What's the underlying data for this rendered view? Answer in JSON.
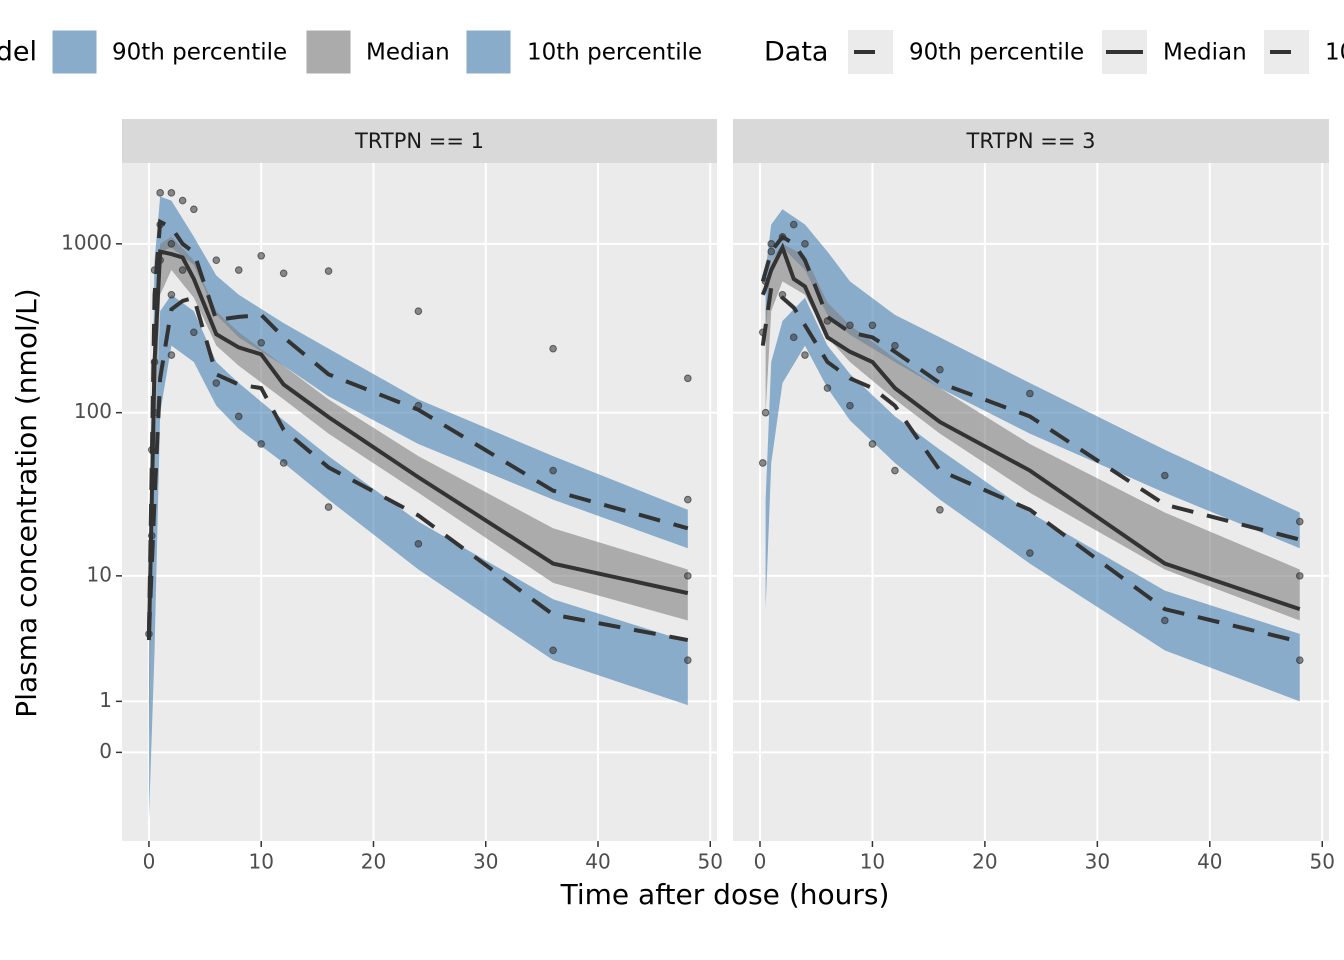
{
  "chart_data": [
    {
      "type": "line",
      "title": "TRTPN == 1",
      "x_label": "Time after dose (hours)",
      "y_label": "Plasma concentration (nmol/L)",
      "legend_titles": [
        "Model",
        "Data"
      ],
      "xlim": [
        -2.4,
        50.6
      ],
      "ylim": [
        -0.7,
        3000
      ],
      "yscale": "log10(x+1)",
      "xticks": [
        0,
        10,
        20,
        30,
        40,
        50
      ],
      "yticks": [
        0,
        1,
        10,
        100,
        1000
      ],
      "grid": true,
      "bands": [
        {
          "name": "90th percentile",
          "color": "#4682b4",
          "opacity": 0.6,
          "x": [
            0,
            0.5,
            1,
            2,
            4,
            6,
            8,
            12,
            16,
            24,
            36,
            48
          ],
          "lower": [
            0,
            200,
            900,
            950,
            750,
            380,
            280,
            190,
            125,
            65,
            30,
            15
          ],
          "upper": [
            3,
            800,
            1900,
            1800,
            1100,
            650,
            500,
            340,
            240,
            120,
            55,
            26
          ]
        },
        {
          "name": "Median",
          "color": "#808080",
          "opacity": 0.6,
          "x": [
            0,
            0.5,
            1,
            2,
            4,
            6,
            8,
            12,
            16,
            24,
            36,
            48
          ],
          "lower": [
            0,
            50,
            500,
            700,
            480,
            250,
            190,
            120,
            75,
            33,
            9,
            5
          ],
          "upper": [
            1,
            300,
            1000,
            1100,
            800,
            400,
            300,
            190,
            120,
            55,
            20,
            11
          ]
        },
        {
          "name": "10th percentile",
          "color": "#4682b4",
          "opacity": 0.6,
          "x": [
            0,
            0.5,
            1,
            2,
            4,
            6,
            8,
            12,
            16,
            24,
            36,
            48
          ],
          "lower": [
            -0.6,
            3,
            100,
            250,
            200,
            110,
            80,
            50,
            30,
            11,
            2.5,
            0.9
          ],
          "upper": [
            0,
            60,
            400,
            500,
            400,
            200,
            150,
            90,
            55,
            22,
            7,
            3.5
          ]
        }
      ],
      "series": [
        {
          "name": "90th percentile",
          "color": "#333333",
          "dashed": true,
          "x": [
            0,
            0.5,
            1,
            2,
            3,
            4,
            6,
            8,
            10,
            12,
            16,
            24,
            36,
            48
          ],
          "values": [
            4,
            500,
            1350,
            1250,
            1000,
            890,
            355,
            370,
            380,
            280,
            169,
            104,
            34,
            20
          ]
        },
        {
          "name": "Median",
          "color": "#333333",
          "dashed": false,
          "x": [
            0,
            0.5,
            1,
            2,
            3,
            4,
            6,
            8,
            10,
            12,
            16,
            24,
            36,
            48
          ],
          "values": [
            3.6,
            200,
            900,
            870,
            830,
            620,
            292,
            244,
            222,
            147,
            94,
            41,
            12,
            7.7
          ]
        },
        {
          "name": "10th percentile",
          "color": "#333333",
          "dashed": true,
          "x": [
            0,
            0.5,
            1,
            2,
            3,
            4,
            6,
            8,
            10,
            12,
            16,
            24,
            36,
            48
          ],
          "values": [
            4,
            30,
            160,
            410,
            460,
            480,
            169,
            147,
            140,
            79,
            47,
            24,
            5.5,
            3.6
          ]
        }
      ],
      "points": {
        "color": "#333333",
        "x": [
          0,
          0.25,
          0.25,
          0.5,
          0.5,
          0.5,
          1,
          1,
          1,
          2,
          2,
          2,
          2,
          3,
          3,
          4,
          4,
          6,
          6,
          8,
          8,
          10,
          10,
          10,
          12,
          12,
          16,
          16,
          24,
          24,
          24,
          36,
          36,
          36,
          48,
          48,
          48,
          48
        ],
        "y": [
          4,
          18,
          60,
          100,
          200,
          700,
          1300,
          2000,
          800,
          2000,
          1000,
          500,
          220,
          1800,
          700,
          1600,
          300,
          800,
          150,
          700,
          95,
          850,
          260,
          65,
          670,
          50,
          690,
          27,
          400,
          110,
          16,
          240,
          45,
          3,
          160,
          30,
          10,
          2.5
        ]
      }
    },
    {
      "type": "line",
      "title": "TRTPN == 3",
      "xlim": [
        -2.4,
        50.6
      ],
      "ylim": [
        -0.7,
        3000
      ],
      "yscale": "log10(x+1)",
      "xticks": [
        0,
        10,
        20,
        30,
        40,
        50
      ],
      "yticks": [
        0,
        1,
        10,
        100,
        1000
      ],
      "grid": true,
      "bands": [
        {
          "name": "90th percentile",
          "color": "#4682b4",
          "opacity": 0.6,
          "x": [
            0.5,
            1,
            2,
            4,
            6,
            8,
            12,
            16,
            24,
            36,
            48
          ],
          "lower": [
            300,
            800,
            950,
            700,
            380,
            290,
            200,
            140,
            75,
            33,
            15
          ],
          "upper": [
            700,
            1300,
            1600,
            1300,
            900,
            600,
            380,
            280,
            150,
            60,
            25
          ]
        },
        {
          "name": "Median",
          "color": "#808080",
          "opacity": 0.6,
          "x": [
            0.5,
            1,
            2,
            4,
            6,
            8,
            12,
            16,
            24,
            36,
            48
          ],
          "lower": [
            100,
            400,
            600,
            500,
            280,
            200,
            120,
            75,
            33,
            11,
            5
          ],
          "upper": [
            400,
            800,
            1000,
            850,
            450,
            330,
            210,
            140,
            65,
            25,
            11
          ]
        },
        {
          "name": "10th percentile",
          "color": "#4682b4",
          "opacity": 0.6,
          "x": [
            0.5,
            1,
            2,
            4,
            6,
            8,
            12,
            16,
            24,
            36,
            48
          ],
          "lower": [
            6,
            50,
            150,
            250,
            140,
            90,
            50,
            30,
            12,
            3,
            1
          ],
          "upper": [
            30,
            200,
            350,
            480,
            250,
            170,
            95,
            60,
            25,
            8,
            4
          ]
        }
      ],
      "series": [
        {
          "name": "90th percentile",
          "color": "#333333",
          "dashed": true,
          "x": [
            0.25,
            1,
            2,
            3,
            4,
            6,
            8,
            10,
            12,
            16,
            24,
            36,
            48
          ],
          "values": [
            600,
            900,
            1100,
            1000,
            800,
            370,
            300,
            280,
            230,
            150,
            95,
            28,
            17
          ]
        },
        {
          "name": "Median",
          "color": "#333333",
          "dashed": false,
          "x": [
            0.25,
            0.5,
            1,
            2,
            3,
            4,
            6,
            8,
            10,
            12,
            16,
            24,
            36,
            48
          ],
          "values": [
            500,
            550,
            700,
            950,
            620,
            560,
            280,
            230,
            200,
            140,
            88,
            45,
            12,
            6
          ]
        },
        {
          "name": "10th percentile",
          "color": "#333333",
          "dashed": true,
          "x": [
            0.25,
            1,
            2,
            3,
            4,
            6,
            8,
            10,
            12,
            16,
            24,
            36,
            48
          ],
          "values": [
            250,
            550,
            480,
            420,
            330,
            200,
            160,
            140,
            110,
            45,
            26,
            6,
            3.5
          ]
        }
      ],
      "points": {
        "color": "#333333",
        "x": [
          0.25,
          0.25,
          0.5,
          0.5,
          1,
          1,
          2,
          2,
          3,
          3,
          4,
          4,
          6,
          6,
          8,
          8,
          10,
          10,
          12,
          12,
          16,
          16,
          24,
          24,
          36,
          36,
          48,
          48,
          48
        ],
        "y": [
          50,
          300,
          600,
          100,
          900,
          1000,
          1100,
          500,
          1300,
          280,
          1000,
          220,
          140,
          350,
          110,
          330,
          65,
          330,
          45,
          250,
          26,
          180,
          14,
          130,
          42,
          5,
          22,
          2.5,
          10
        ]
      }
    }
  ]
}
